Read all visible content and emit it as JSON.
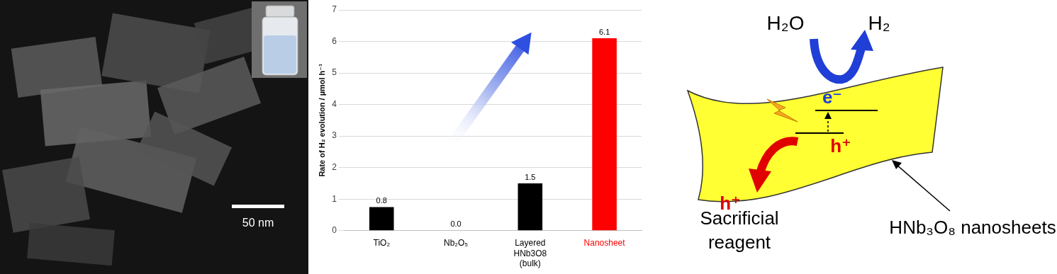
{
  "micrograph": {
    "scale_bar": "50 nm"
  },
  "chart_data": {
    "type": "bar",
    "y_label": "Rate of H₂ evolution / µmol h⁻¹",
    "categories": [
      "TiO₂",
      "Nb₂O₅",
      "Layered HNb3O8 (bulk)",
      "Nanosheet"
    ],
    "values": [
      0.75,
      0,
      1.5,
      6.1
    ],
    "value_labels": [
      "0.8",
      "0.0",
      "1.5",
      "6.1"
    ],
    "colors": [
      "#000000",
      "#000000",
      "#000000",
      "#ff0000"
    ],
    "ylim": [
      0,
      7
    ],
    "yticks": [
      0,
      1,
      2,
      3,
      4,
      5,
      6,
      7
    ],
    "grid": true,
    "data_labels": true
  },
  "diagram": {
    "reactant": "H₂O",
    "product": "H₂",
    "electron": "e⁻",
    "hole_inside": "h⁺",
    "hole_out": "h⁺",
    "sacrificial": "Sacrificial reagent",
    "sheet_label": "HNb₃O₈ nanosheets"
  }
}
